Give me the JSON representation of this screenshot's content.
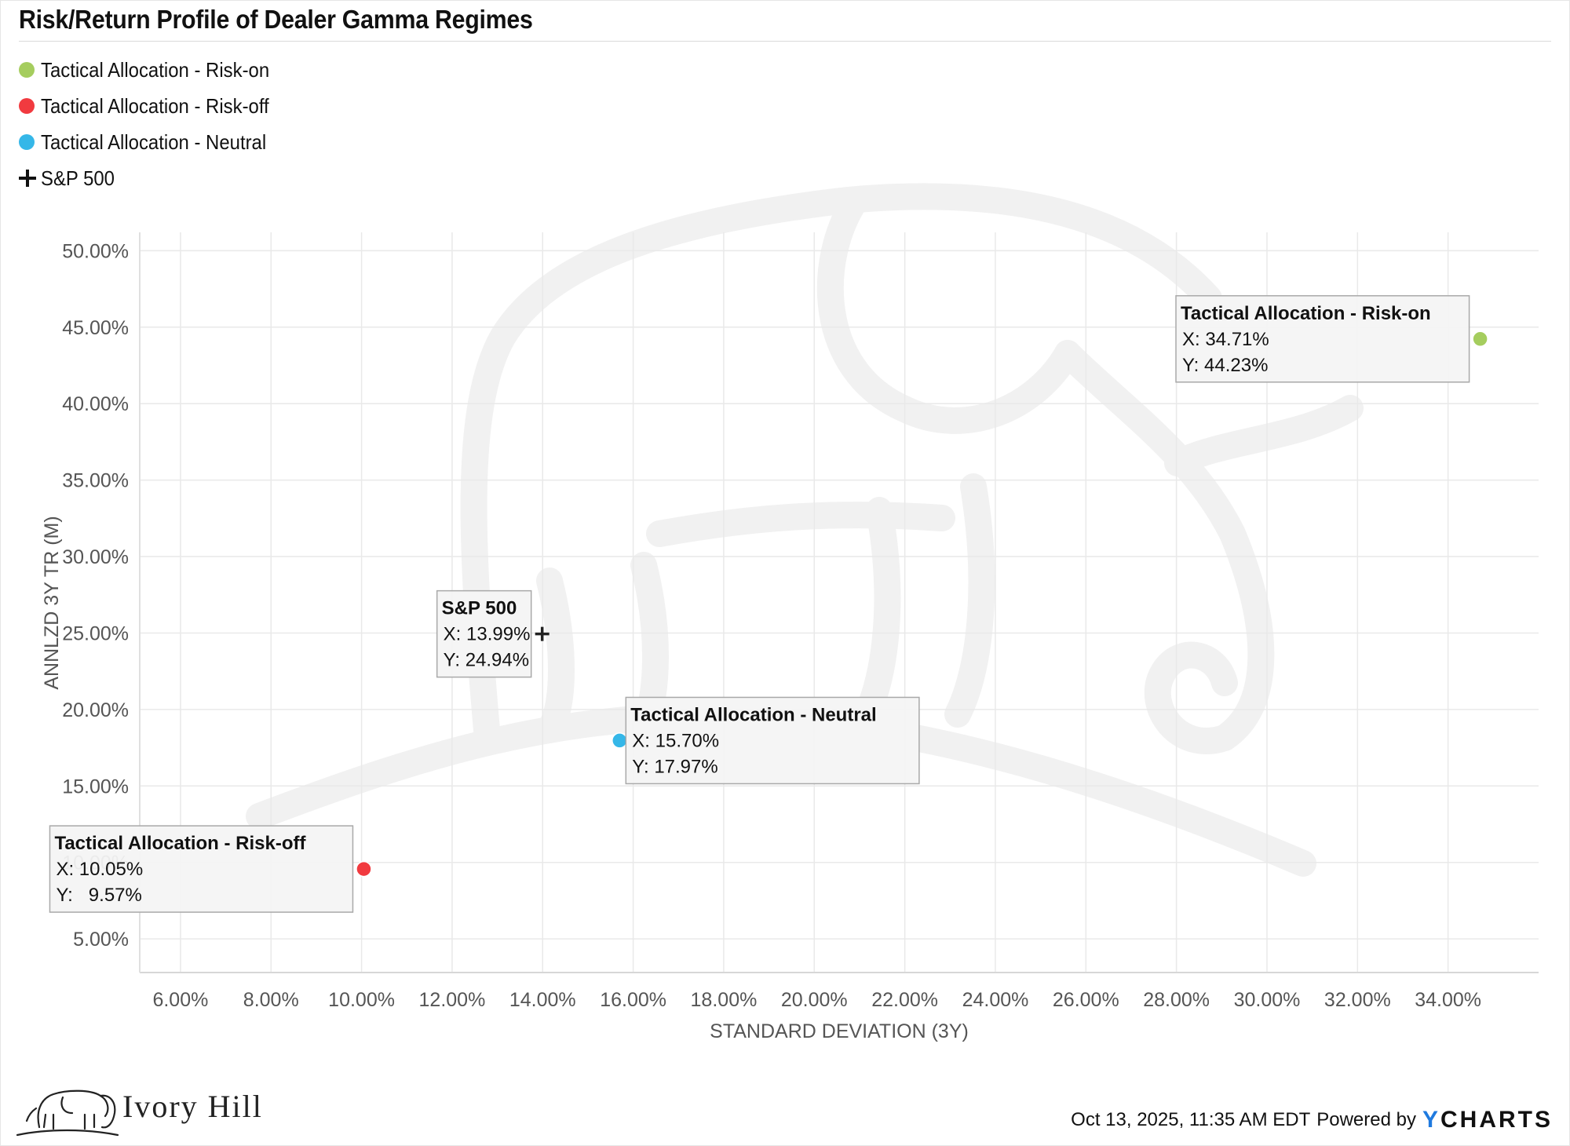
{
  "chart_data": {
    "type": "scatter",
    "title": "Risk/Return Profile of Dealer Gamma Regimes",
    "xlabel": "STANDARD DEVIATION (3Y)",
    "ylabel": "ANNLZD 3Y TR (M)",
    "xlim": [
      5.1,
      36.0
    ],
    "ylim": [
      2.8,
      51.2
    ],
    "x_ticks": [
      6,
      8,
      10,
      12,
      14,
      16,
      18,
      20,
      22,
      24,
      26,
      28,
      30,
      32,
      34
    ],
    "y_ticks": [
      5,
      10,
      15,
      20,
      25,
      30,
      35,
      40,
      45,
      50
    ],
    "x_tick_labels": [
      "6.00%",
      "8.00%",
      "10.00%",
      "12.00%",
      "14.00%",
      "16.00%",
      "18.00%",
      "20.00%",
      "22.00%",
      "24.00%",
      "26.00%",
      "28.00%",
      "30.00%",
      "32.00%",
      "34.00%"
    ],
    "y_tick_labels": [
      "5.00%",
      "10.00%",
      "15.00%",
      "20.00%",
      "25.00%",
      "30.00%",
      "35.00%",
      "40.00%",
      "45.00%",
      "50.00%"
    ],
    "grid": true,
    "legend_position": "top-left",
    "series": [
      {
        "name": "Tactical Allocation - Risk-on",
        "color": "#a5cd5e",
        "marker": "circle",
        "x": 34.71,
        "y": 44.23,
        "x_label": "X: 34.71%",
        "y_label": "Y: 44.23%",
        "tooltip_side": "left"
      },
      {
        "name": "Tactical Allocation - Risk-off",
        "color": "#f13a3f",
        "marker": "circle",
        "x": 10.05,
        "y": 9.57,
        "x_label": "X: 10.05%",
        "y_label": "Y:   9.57%",
        "tooltip_side": "left"
      },
      {
        "name": "Tactical Allocation - Neutral",
        "color": "#35b7e8",
        "marker": "circle",
        "x": 15.7,
        "y": 17.97,
        "x_label": "X: 15.70%",
        "y_label": "Y: 17.97%",
        "tooltip_side": "right"
      },
      {
        "name": "S&P 500",
        "color": "#222222",
        "marker": "plus",
        "x": 13.99,
        "y": 24.94,
        "x_label": "X: 13.99%",
        "y_label": "Y: 24.94%",
        "tooltip_side": "left"
      }
    ]
  },
  "legend": {
    "items": [
      {
        "label": "Tactical Allocation - Risk-on",
        "color": "#a5cd5e",
        "icon": "circle"
      },
      {
        "label": "Tactical Allocation - Risk-off",
        "color": "#f13a3f",
        "icon": "circle"
      },
      {
        "label": "Tactical Allocation - Neutral",
        "color": "#35b7e8",
        "icon": "circle"
      },
      {
        "label": "S&P 500",
        "color": "#222222",
        "icon": "plus"
      }
    ]
  },
  "branding": {
    "company_name": "Ivory Hill",
    "company_logo_icon": "elephant-icon",
    "watermark_icon": "elephant-watermark-icon"
  },
  "footer": {
    "timestamp": "Oct 13, 2025, 11:35 AM EDT",
    "powered_by": "Powered by",
    "provider_logo_letters": [
      "Y",
      "CHARTS"
    ]
  }
}
